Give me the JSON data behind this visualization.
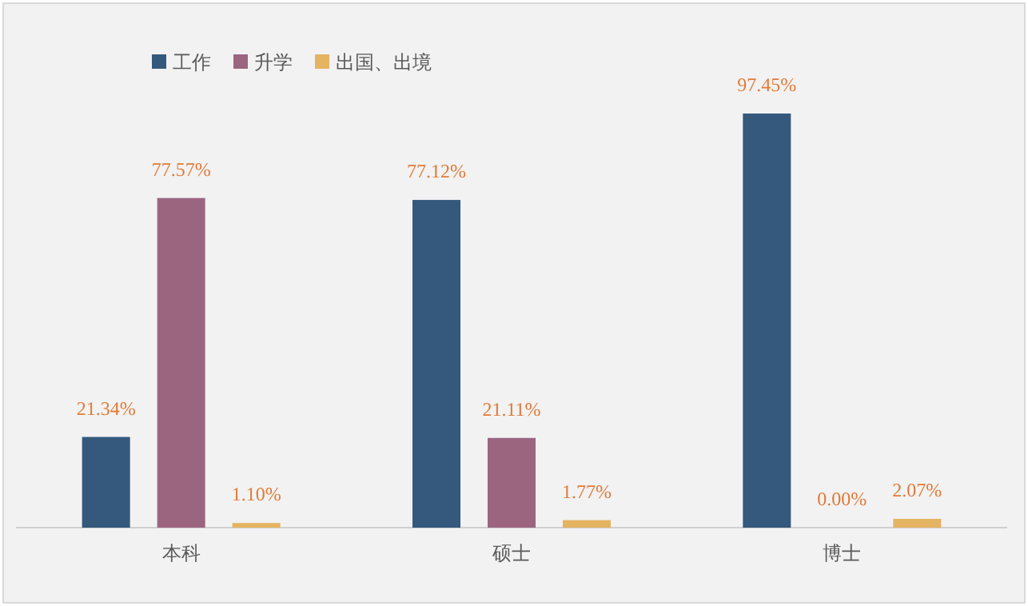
{
  "chart_data": {
    "type": "bar",
    "categories": [
      "本科",
      "硕士",
      "博士"
    ],
    "series": [
      {
        "name": "工作",
        "color": "#34597c",
        "values": [
          21.34,
          77.12,
          97.45
        ],
        "value_labels": [
          "21.34%",
          "77.12%",
          "97.45%"
        ]
      },
      {
        "name": "升学",
        "color": "#9b6580",
        "values": [
          77.57,
          21.11,
          0.0
        ],
        "value_labels": [
          "77.57%",
          "21.11%",
          "0.00%"
        ]
      },
      {
        "name": "出国、出境",
        "color": "#e4b463",
        "values": [
          1.1,
          1.77,
          2.07
        ],
        "value_labels": [
          "1.10%",
          "1.77%",
          "2.07%"
        ]
      }
    ],
    "legend": "top left"
  }
}
